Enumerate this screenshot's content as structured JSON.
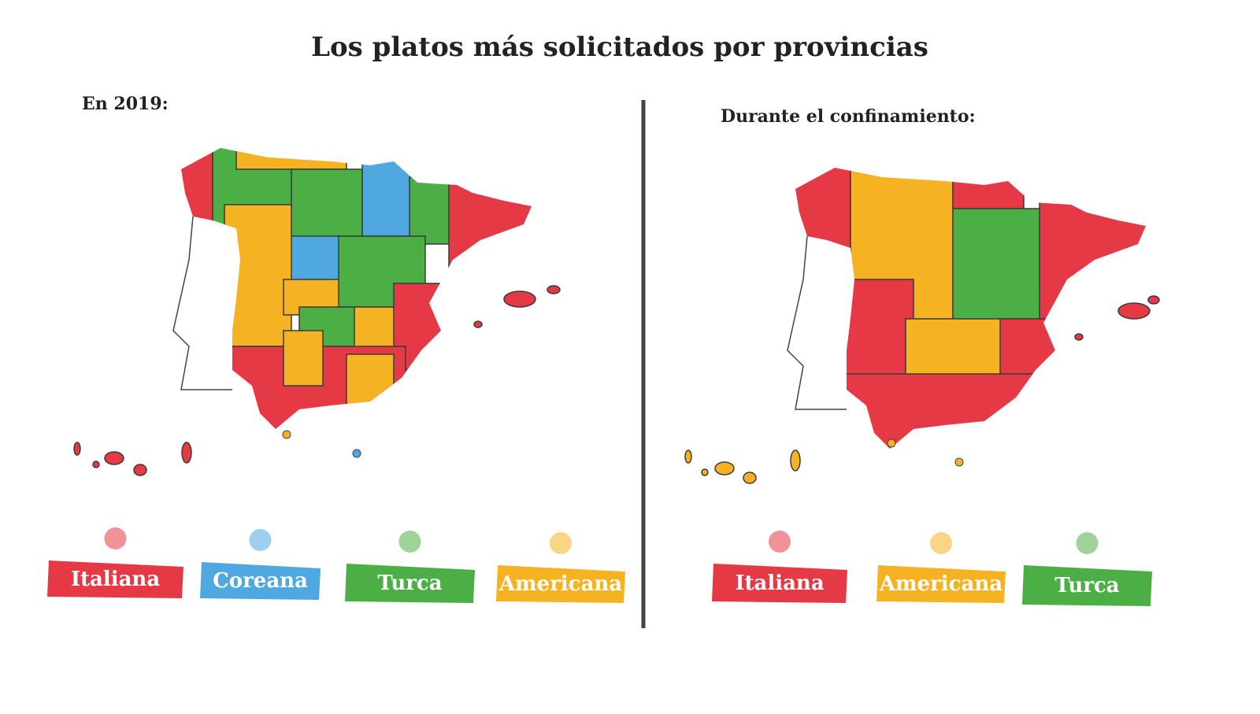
{
  "header": {
    "title": "Los platos más solicitados por provincias"
  },
  "panels": [
    {
      "subtitle": "En 2019:",
      "legend": [
        {
          "label": "Italiana",
          "color": "#e63946"
        },
        {
          "label": "Coreana",
          "color": "#4fa8e0"
        },
        {
          "label": "Turca",
          "color": "#4caf45"
        },
        {
          "label": "Americana",
          "color": "#f5b223"
        }
      ]
    },
    {
      "subtitle": "Durante el confinamiento:",
      "legend": [
        {
          "label": "Italiana",
          "color": "#e63946"
        },
        {
          "label": "Americana",
          "color": "#f5b223"
        },
        {
          "label": "Turca",
          "color": "#4caf45"
        }
      ]
    }
  ]
}
